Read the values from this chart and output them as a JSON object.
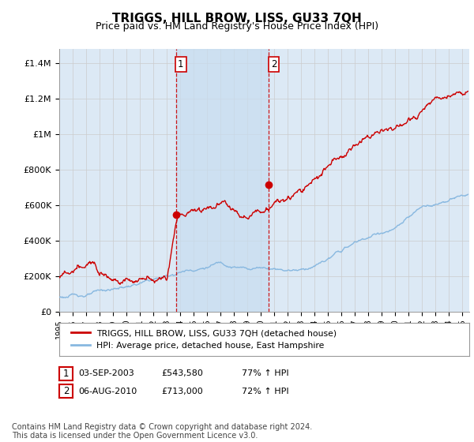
{
  "title": "TRIGGS, HILL BROW, LISS, GU33 7QH",
  "subtitle": "Price paid vs. HM Land Registry's House Price Index (HPI)",
  "title_fontsize": 11,
  "subtitle_fontsize": 9,
  "ylabel_ticks": [
    "£0",
    "£200K",
    "£400K",
    "£600K",
    "£800K",
    "£1M",
    "£1.2M",
    "£1.4M"
  ],
  "ytick_vals": [
    0,
    200000,
    400000,
    600000,
    800000,
    1000000,
    1200000,
    1400000
  ],
  "ylim": [
    0,
    1480000
  ],
  "xlim_start": 1995.0,
  "xlim_end": 2025.5,
  "xtick_years": [
    1995,
    1996,
    1997,
    1998,
    1999,
    2000,
    2001,
    2002,
    2003,
    2004,
    2005,
    2006,
    2007,
    2008,
    2009,
    2010,
    2011,
    2012,
    2013,
    2014,
    2015,
    2016,
    2017,
    2018,
    2019,
    2020,
    2021,
    2022,
    2023,
    2024,
    2025
  ],
  "grid_color": "#cccccc",
  "background_color": "#dce9f5",
  "hpi_color": "#88b8e0",
  "price_color": "#cc0000",
  "shade_color": "#c8ddf0",
  "marker1_date": 2003.67,
  "marker1_price": 543580,
  "marker2_date": 2010.58,
  "marker2_price": 713000,
  "marker_vline_color": "#cc0000",
  "legend_label1": "TRIGGS, HILL BROW, LISS, GU33 7QH (detached house)",
  "legend_label2": "HPI: Average price, detached house, East Hampshire",
  "table_row1": [
    "1",
    "03-SEP-2003",
    "£543,580",
    "77% ↑ HPI"
  ],
  "table_row2": [
    "2",
    "06-AUG-2010",
    "£713,000",
    "72% ↑ HPI"
  ],
  "footer": "Contains HM Land Registry data © Crown copyright and database right 2024.\nThis data is licensed under the Open Government Licence v3.0.",
  "footer_fontsize": 7.0
}
